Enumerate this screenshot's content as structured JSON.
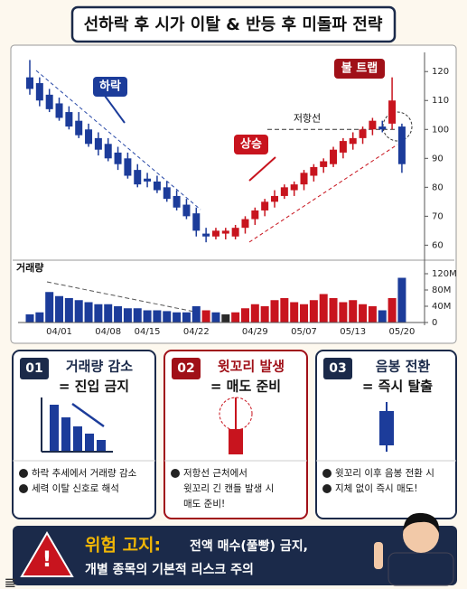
{
  "title": "선하락 후 시가 이탈 & 반등 후 미돌파 전략",
  "chart_data": [
    {
      "type": "candlestick",
      "open": [
        118,
        116,
        112,
        109,
        106,
        103,
        100,
        97,
        95,
        92,
        90,
        86,
        83,
        82,
        80,
        77,
        74,
        71,
        64,
        63,
        64,
        63,
        66,
        69,
        72,
        75,
        77,
        79,
        81,
        84,
        87,
        88,
        92,
        95,
        97,
        100,
        101,
        102,
        101
      ],
      "high": [
        124,
        118,
        114,
        111,
        108,
        106,
        102,
        99,
        97,
        94,
        92,
        88,
        85,
        84,
        82,
        79,
        76,
        73,
        66,
        66,
        66,
        67,
        70,
        73,
        76,
        79,
        81,
        82,
        86,
        88,
        90,
        94,
        97,
        99,
        101,
        104,
        103,
        118,
        102
      ],
      "low": [
        112,
        108,
        106,
        103,
        100,
        97,
        94,
        91,
        89,
        86,
        83,
        80,
        80,
        78,
        75,
        72,
        69,
        63,
        61,
        62,
        62,
        62,
        64,
        67,
        70,
        73,
        76,
        77,
        79,
        82,
        85,
        87,
        90,
        93,
        95,
        98,
        99,
        100,
        85
      ],
      "close": [
        114,
        110,
        107,
        104,
        101,
        98,
        95,
        93,
        90,
        88,
        84,
        81,
        82,
        79,
        76,
        73,
        70,
        65,
        63,
        65,
        65,
        66,
        69,
        72,
        75,
        77,
        80,
        81,
        85,
        87,
        89,
        93,
        96,
        97,
        100,
        103,
        100,
        110,
        88
      ],
      "up_color": "#c8141e",
      "down_color": "#1c3c9a",
      "ylim": [
        57,
        126
      ],
      "yticks": [
        60,
        70,
        80,
        90,
        100,
        110,
        120
      ],
      "annotations": [
        "하락",
        "상승",
        "불 트랩"
      ],
      "resistance": {
        "label": "저항선",
        "value": 100
      }
    },
    {
      "type": "bar",
      "title": "거래량",
      "categories": [
        null,
        null,
        null,
        "04/01",
        null,
        null,
        null,
        null,
        "04/08",
        null,
        null,
        null,
        "04/15",
        null,
        null,
        null,
        null,
        "04/22",
        null,
        null,
        null,
        null,
        null,
        "04/29",
        null,
        null,
        null,
        null,
        "05/07",
        null,
        null,
        null,
        null,
        "05/13",
        null,
        null,
        null,
        null,
        "05/20"
      ],
      "values": [
        20,
        25,
        75,
        65,
        60,
        55,
        50,
        45,
        45,
        40,
        35,
        35,
        30,
        30,
        28,
        25,
        25,
        40,
        30,
        25,
        20,
        25,
        35,
        45,
        40,
        55,
        60,
        50,
        45,
        55,
        70,
        60,
        50,
        55,
        45,
        40,
        30,
        60,
        110
      ],
      "colors": [
        "#1c3c9a",
        "#1c3c9a",
        "#1c3c9a",
        "#1c3c9a",
        "#1c3c9a",
        "#1c3c9a",
        "#1c3c9a",
        "#1c3c9a",
        "#1c3c9a",
        "#1c3c9a",
        "#1c3c9a",
        "#1c3c9a",
        "#1c3c9a",
        "#1c3c9a",
        "#1c3c9a",
        "#1c3c9a",
        "#1c3c9a",
        "#1c3c9a",
        "#c8141e",
        "#1c3c9a",
        "#2a2a2a",
        "#c8141e",
        "#c8141e",
        "#c8141e",
        "#c8141e",
        "#c8141e",
        "#c8141e",
        "#c8141e",
        "#c8141e",
        "#c8141e",
        "#c8141e",
        "#c8141e",
        "#c8141e",
        "#c8141e",
        "#c8141e",
        "#c8141e",
        "#1c3c9a",
        "#c8141e",
        "#1c3c9a"
      ],
      "ylim": [
        0,
        125
      ],
      "yticks": [
        {
          "value": 0,
          "label": "0"
        },
        {
          "value": 40,
          "label": "40M"
        },
        {
          "value": 80,
          "label": "80M"
        },
        {
          "value": 120,
          "label": "120M"
        }
      ]
    }
  ],
  "cards": [
    {
      "number": "01",
      "title": "거래량 감소",
      "subtitle": "= 진입 금지",
      "bullets": [
        "하락 추세에서 거래량 감소",
        "세력 이탈 신호로 해석"
      ]
    },
    {
      "number": "02",
      "title": "윗꼬리 발생",
      "subtitle": "= 매도 준비",
      "bullets": [
        "저항선 근처에서",
        "윗꼬리 긴 캔들 발생 시",
        "매도 준비!"
      ]
    },
    {
      "number": "03",
      "title": "음봉 전환",
      "subtitle": "= 즉시 탈출",
      "bullets": [
        "윗꼬리 이후 음봉 전환 시",
        "지체 없이 즉시 매도!"
      ]
    }
  ],
  "warning": {
    "label": "위험 고지:",
    "line1": "전액 매수(풀빵) 금지,",
    "line2": "개별 종목의 기본적 리스크 주의"
  }
}
